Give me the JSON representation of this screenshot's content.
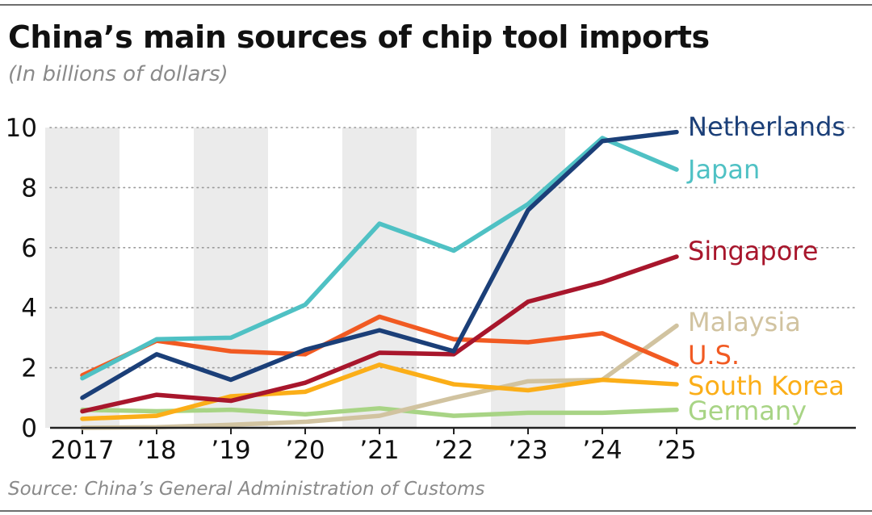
{
  "header": {
    "title": "China’s main sources of chip tool imports",
    "subtitle": "(In billions of dollars)"
  },
  "footer": {
    "source": "Source: China’s General Administration of Customs"
  },
  "chart_data": {
    "type": "line",
    "title": "China’s main sources of chip tool imports",
    "subtitle": "(In billions of dollars)",
    "xlabel": "",
    "ylabel": "",
    "categories": [
      "2017",
      "’18",
      "’19",
      "’20",
      "’21",
      "’22",
      "’23",
      "’24",
      "’25"
    ],
    "ylim": [
      0,
      10
    ],
    "yticks": [
      "0",
      "2",
      "4",
      "6",
      "8",
      "10"
    ],
    "grid": "horizontal dotted",
    "shaded_bands": [
      "2017",
      "’19",
      "’21",
      "’23"
    ],
    "legend_placement": "right, at line ends",
    "series": [
      {
        "name": "Germany",
        "color": "#a8d485",
        "values": [
          0.6,
          0.55,
          0.6,
          0.45,
          0.65,
          0.4,
          0.5,
          0.5,
          0.6
        ]
      },
      {
        "name": "Malaysia",
        "color": "#d1c3a0",
        "values": [
          0.0,
          0.02,
          0.1,
          0.2,
          0.4,
          1.0,
          1.55,
          1.6,
          3.4
        ]
      },
      {
        "name": "South Korea",
        "color": "#fbae18",
        "values": [
          0.3,
          0.4,
          1.05,
          1.2,
          2.1,
          1.45,
          1.25,
          1.6,
          1.45
        ]
      },
      {
        "name": "U.S.",
        "color": "#f15a22",
        "values": [
          1.75,
          2.9,
          2.55,
          2.45,
          3.7,
          2.95,
          2.85,
          3.15,
          2.1
        ]
      },
      {
        "name": "Singapore",
        "color": "#a8162c",
        "values": [
          0.55,
          1.1,
          0.9,
          1.5,
          2.5,
          2.45,
          4.2,
          4.85,
          5.7
        ]
      },
      {
        "name": "Japan",
        "color": "#4fc1c4",
        "values": [
          1.65,
          2.95,
          3.0,
          4.1,
          6.8,
          5.9,
          7.45,
          9.65,
          8.6
        ]
      },
      {
        "name": "Netherlands",
        "color": "#1b3f78",
        "values": [
          1.0,
          2.45,
          1.6,
          2.6,
          3.25,
          2.55,
          7.25,
          9.55,
          9.85
        ]
      }
    ]
  }
}
